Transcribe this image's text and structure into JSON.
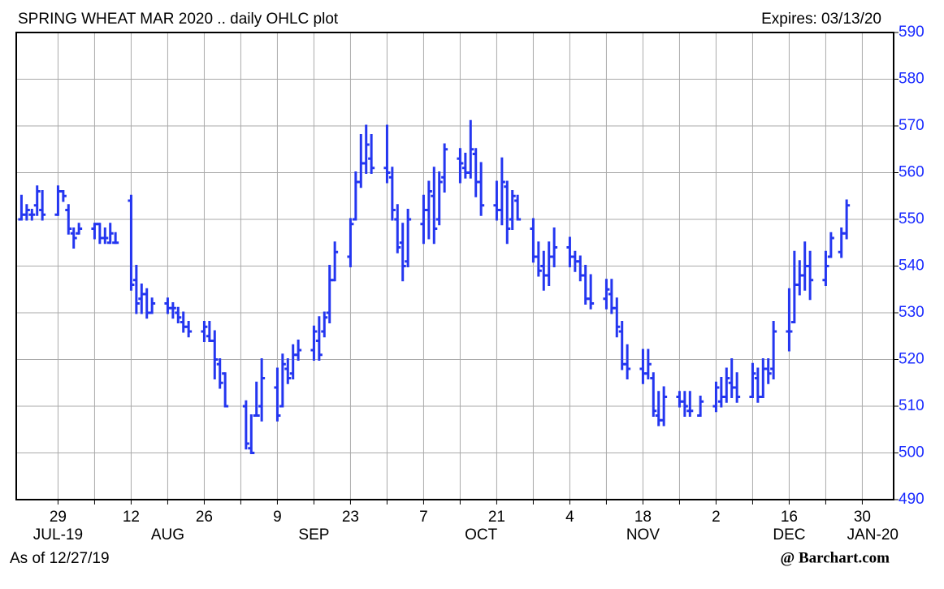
{
  "chart_data": {
    "type": "ohlc",
    "title": "SPRING WHEAT MAR 2020 .. daily OHLC plot",
    "expires": "Expires: 03/13/20",
    "as_of": "As of 12/27/19",
    "source": "@ Barchart.com",
    "color": "#2436f0",
    "grid": true,
    "ylim": [
      490,
      590
    ],
    "yticks": [
      490,
      500,
      510,
      520,
      530,
      540,
      550,
      560,
      570,
      580,
      590
    ],
    "xlim": [
      "2019-07-21",
      "2020-01-05"
    ],
    "xticks": [
      {
        "value": "2019-07-29",
        "label": "29"
      },
      {
        "value": "2019-08-05",
        "label": null
      },
      {
        "value": "2019-08-12",
        "label": "12"
      },
      {
        "value": "2019-08-19",
        "label": null
      },
      {
        "value": "2019-08-26",
        "label": "26"
      },
      {
        "value": "2019-09-02",
        "label": null
      },
      {
        "value": "2019-09-09",
        "label": "9"
      },
      {
        "value": "2019-09-16",
        "label": null
      },
      {
        "value": "2019-09-23",
        "label": "23"
      },
      {
        "value": "2019-09-30",
        "label": null
      },
      {
        "value": "2019-10-07",
        "label": "7"
      },
      {
        "value": "2019-10-14",
        "label": null
      },
      {
        "value": "2019-10-21",
        "label": "21"
      },
      {
        "value": "2019-10-28",
        "label": null
      },
      {
        "value": "2019-11-04",
        "label": "4"
      },
      {
        "value": "2019-11-11",
        "label": null
      },
      {
        "value": "2019-11-18",
        "label": "18"
      },
      {
        "value": "2019-11-25",
        "label": null
      },
      {
        "value": "2019-12-02",
        "label": "2"
      },
      {
        "value": "2019-12-09",
        "label": null
      },
      {
        "value": "2019-12-16",
        "label": "16"
      },
      {
        "value": "2019-12-23",
        "label": null
      },
      {
        "value": "2019-12-30",
        "label": "30"
      }
    ],
    "month_labels": [
      {
        "value": "2019-07-29",
        "label": "JUL-19"
      },
      {
        "value": "2019-08-19",
        "label": "AUG"
      },
      {
        "value": "2019-09-16",
        "label": "SEP"
      },
      {
        "value": "2019-10-18",
        "label": "OCT"
      },
      {
        "value": "2019-11-18",
        "label": "NOV"
      },
      {
        "value": "2019-12-16",
        "label": "DEC"
      },
      {
        "value": "2020-01-01",
        "label": "JAN-20"
      }
    ],
    "x": [
      "2019-07-22",
      "2019-07-23",
      "2019-07-24",
      "2019-07-25",
      "2019-07-26",
      "2019-07-29",
      "2019-07-30",
      "2019-07-31",
      "2019-08-01",
      "2019-08-02",
      "2019-08-05",
      "2019-08-06",
      "2019-08-07",
      "2019-08-08",
      "2019-08-09",
      "2019-08-12",
      "2019-08-13",
      "2019-08-14",
      "2019-08-15",
      "2019-08-16",
      "2019-08-19",
      "2019-08-20",
      "2019-08-21",
      "2019-08-22",
      "2019-08-23",
      "2019-08-26",
      "2019-08-27",
      "2019-08-28",
      "2019-08-29",
      "2019-08-30",
      "2019-09-03",
      "2019-09-04",
      "2019-09-05",
      "2019-09-06",
      "2019-09-09",
      "2019-09-10",
      "2019-09-11",
      "2019-09-12",
      "2019-09-13",
      "2019-09-16",
      "2019-09-17",
      "2019-09-18",
      "2019-09-19",
      "2019-09-20",
      "2019-09-23",
      "2019-09-24",
      "2019-09-25",
      "2019-09-26",
      "2019-09-27",
      "2019-09-30",
      "2019-10-01",
      "2019-10-02",
      "2019-10-03",
      "2019-10-04",
      "2019-10-07",
      "2019-10-08",
      "2019-10-09",
      "2019-10-10",
      "2019-10-11",
      "2019-10-14",
      "2019-10-15",
      "2019-10-16",
      "2019-10-17",
      "2019-10-18",
      "2019-10-21",
      "2019-10-22",
      "2019-10-23",
      "2019-10-24",
      "2019-10-25",
      "2019-10-28",
      "2019-10-29",
      "2019-10-30",
      "2019-10-31",
      "2019-11-01",
      "2019-11-04",
      "2019-11-05",
      "2019-11-06",
      "2019-11-07",
      "2019-11-08",
      "2019-11-11",
      "2019-11-12",
      "2019-11-13",
      "2019-11-14",
      "2019-11-15",
      "2019-11-18",
      "2019-11-19",
      "2019-11-20",
      "2019-11-21",
      "2019-11-22",
      "2019-11-25",
      "2019-11-26",
      "2019-11-27",
      "2019-11-29",
      "2019-12-02",
      "2019-12-03",
      "2019-12-04",
      "2019-12-05",
      "2019-12-06",
      "2019-12-09",
      "2019-12-10",
      "2019-12-11",
      "2019-12-12",
      "2019-12-13",
      "2019-12-16",
      "2019-12-17",
      "2019-12-18",
      "2019-12-19",
      "2019-12-20",
      "2019-12-23",
      "2019-12-24",
      "2019-12-26",
      "2019-12-27"
    ],
    "values": [
      [
        550,
        555,
        550,
        551
      ],
      [
        551,
        553,
        550,
        552
      ],
      [
        551,
        552,
        550,
        551
      ],
      [
        553,
        557,
        551,
        556
      ],
      [
        552,
        556,
        550,
        551
      ],
      [
        551,
        557,
        551,
        556
      ],
      [
        556,
        556,
        554,
        555
      ],
      [
        552,
        553,
        547,
        548
      ],
      [
        547,
        548,
        544,
        546
      ],
      [
        547,
        549,
        547,
        548
      ],
      [
        548,
        549,
        546,
        549
      ],
      [
        549,
        549,
        545,
        546
      ],
      [
        546,
        548,
        545,
        546
      ],
      [
        545,
        549,
        545,
        547
      ],
      [
        545,
        547,
        545,
        545
      ],
      [
        554,
        555,
        535,
        536
      ],
      [
        537,
        540,
        530,
        532
      ],
      [
        533,
        536,
        530,
        534
      ],
      [
        534,
        535,
        529,
        530
      ],
      [
        530,
        533,
        530,
        532
      ],
      [
        532,
        533,
        530,
        531
      ],
      [
        531,
        532,
        529,
        531
      ],
      [
        530,
        531,
        528,
        529
      ],
      [
        528,
        530,
        526,
        527
      ],
      [
        527,
        528,
        525,
        526
      ],
      [
        526,
        528,
        524,
        527
      ],
      [
        525,
        528,
        524,
        524
      ],
      [
        524,
        526,
        516,
        520
      ],
      [
        519,
        520,
        514,
        515
      ],
      [
        517,
        517,
        510,
        510
      ],
      [
        510,
        511,
        501,
        502
      ],
      [
        501,
        508,
        500,
        500
      ],
      [
        508,
        515,
        508,
        508
      ],
      [
        510,
        520,
        507,
        516
      ],
      [
        514,
        518,
        507,
        508
      ],
      [
        510,
        521,
        510,
        519
      ],
      [
        518,
        520,
        515,
        516
      ],
      [
        517,
        523,
        516,
        521
      ],
      [
        521,
        524,
        520,
        522
      ],
      [
        522,
        527,
        520,
        526
      ],
      [
        524,
        529,
        520,
        521
      ],
      [
        526,
        530,
        525,
        529
      ],
      [
        530,
        540,
        528,
        537
      ],
      [
        537,
        545,
        537,
        543
      ],
      [
        542,
        550,
        540,
        549
      ],
      [
        550,
        560,
        550,
        558
      ],
      [
        558,
        568,
        557,
        562
      ],
      [
        562,
        570,
        560,
        566
      ],
      [
        563,
        568,
        560,
        561
      ],
      [
        561,
        570,
        558,
        560
      ],
      [
        559,
        561,
        550,
        552
      ],
      [
        550,
        553,
        543,
        544
      ],
      [
        545,
        549,
        537,
        540
      ],
      [
        541,
        552,
        540,
        550
      ],
      [
        549,
        555,
        545,
        552
      ],
      [
        552,
        558,
        546,
        556
      ],
      [
        555,
        561,
        545,
        548
      ],
      [
        550,
        560,
        549,
        558
      ],
      [
        559,
        566,
        556,
        565
      ],
      [
        563,
        565,
        558,
        562
      ],
      [
        561,
        564,
        559,
        560
      ],
      [
        560,
        571,
        559,
        565
      ],
      [
        564,
        565,
        555,
        558
      ],
      [
        558,
        562,
        551,
        553
      ],
      [
        553,
        558,
        550,
        552
      ],
      [
        552,
        563,
        549,
        558
      ],
      [
        557,
        558,
        545,
        548
      ],
      [
        550,
        556,
        548,
        555
      ],
      [
        554,
        555,
        550,
        550
      ],
      [
        548,
        550,
        541,
        542
      ],
      [
        542,
        545,
        538,
        539
      ],
      [
        540,
        543,
        535,
        538
      ],
      [
        538,
        545,
        536,
        542
      ],
      [
        542,
        548,
        540,
        544
      ],
      [
        544,
        546,
        540,
        542
      ],
      [
        542,
        543,
        539,
        541
      ],
      [
        541,
        542,
        537,
        538
      ],
      [
        538,
        540,
        532,
        533
      ],
      [
        533,
        538,
        531,
        532
      ],
      [
        533,
        537,
        531,
        535
      ],
      [
        534,
        537,
        530,
        531
      ],
      [
        531,
        533,
        525,
        527
      ],
      [
        526,
        528,
        518,
        519
      ],
      [
        519,
        523,
        516,
        518
      ],
      [
        518,
        522,
        515,
        517
      ],
      [
        517,
        522,
        516,
        519
      ],
      [
        516,
        517,
        508,
        509
      ],
      [
        508,
        513,
        506,
        507
      ],
      [
        507,
        514,
        506,
        512
      ],
      [
        512,
        513,
        510,
        511
      ],
      [
        511,
        513,
        508,
        510
      ],
      [
        509,
        513,
        508,
        509
      ],
      [
        508,
        512,
        508,
        511
      ],
      [
        510,
        515,
        509,
        514
      ],
      [
        511,
        516,
        510,
        512
      ],
      [
        512,
        518,
        511,
        516
      ],
      [
        515,
        520,
        512,
        514
      ],
      [
        514,
        517,
        511,
        512
      ],
      [
        512,
        519,
        512,
        517
      ],
      [
        516,
        518,
        511,
        512
      ],
      [
        512,
        520,
        512,
        518
      ],
      [
        518,
        520,
        515,
        517
      ],
      [
        518,
        528,
        516,
        526
      ],
      [
        526,
        535,
        522,
        526
      ],
      [
        528,
        543,
        528,
        536
      ],
      [
        536,
        541,
        534,
        538
      ],
      [
        538,
        545,
        535,
        540
      ],
      [
        540,
        543,
        533,
        537
      ],
      [
        537,
        543,
        536,
        540
      ],
      [
        542,
        547,
        542,
        546
      ],
      [
        543,
        548,
        542,
        547
      ],
      [
        547,
        554,
        546,
        553
      ]
    ]
  }
}
